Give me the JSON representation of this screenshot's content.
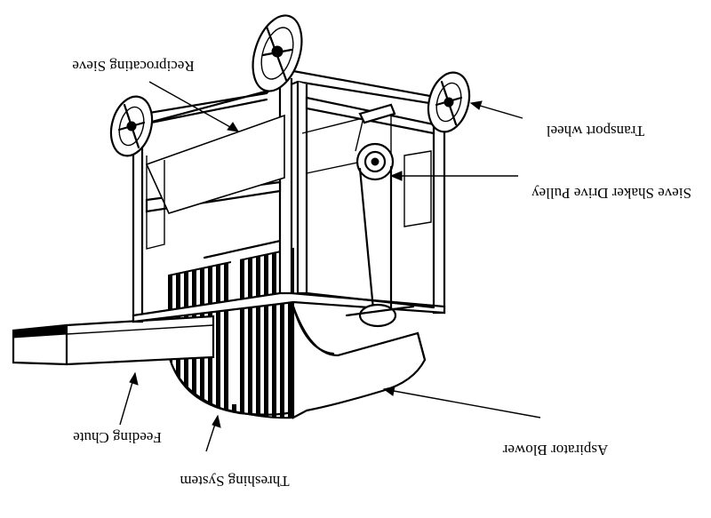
{
  "labels": {
    "reciprocating_sieve": "Reciprocating Sieve",
    "transport_wheel": "Transport wheel",
    "sieve_shaker_drive_pulley": "Sieve Shaker Drive Pulley",
    "feeding_chute": "Feeding Chute",
    "threshing_system": "Threshing System",
    "aspirator_blower": "Aspirator Blower"
  }
}
